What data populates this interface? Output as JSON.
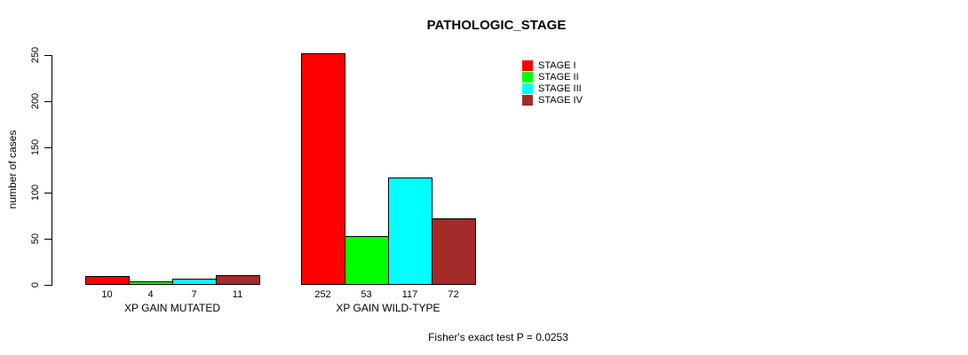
{
  "chart_data": {
    "type": "bar",
    "title": "PATHOLOGIC_STAGE",
    "ylabel": "number of cases",
    "xlabel": "",
    "ylim": [
      0,
      250
    ],
    "yticks": [
      0,
      50,
      100,
      150,
      200,
      250
    ],
    "grid": false,
    "legend_position": "top-right",
    "categories": [
      "XP GAIN MUTATED",
      "XP GAIN WILD-TYPE"
    ],
    "series": [
      {
        "name": "STAGE I",
        "color": "#ff0000",
        "values": [
          10,
          252
        ]
      },
      {
        "name": "STAGE II",
        "color": "#00ff00",
        "values": [
          4,
          53
        ]
      },
      {
        "name": "STAGE III",
        "color": "#00ffff",
        "values": [
          7,
          117
        ]
      },
      {
        "name": "STAGE IV",
        "color": "#a52a2a",
        "values": [
          11,
          72
        ]
      }
    ],
    "bar_value_labels": [
      [
        "10",
        "4",
        "7",
        "11"
      ],
      [
        "252",
        "53",
        "117",
        "72"
      ]
    ],
    "annotation": "Fisher's exact test P = 0.0253"
  }
}
